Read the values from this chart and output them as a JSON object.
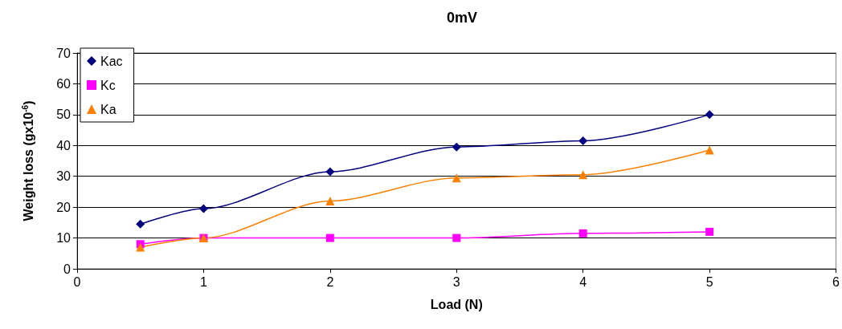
{
  "chart_data": {
    "type": "line",
    "title": "0mV",
    "xlabel": "Load (N)",
    "ylabel": "Weight loss (gx10$^{-6}$)",
    "x": [
      0.5,
      1,
      2,
      3,
      4,
      5
    ],
    "series": [
      {
        "name": "Kac",
        "color": "#000080",
        "marker": "diamond",
        "values": [
          14.5,
          19.5,
          31.5,
          39.5,
          41.5,
          50
        ]
      },
      {
        "name": "Kc",
        "color": "#ff00ff",
        "marker": "square",
        "values": [
          8,
          10,
          10,
          10,
          11.5,
          12
        ]
      },
      {
        "name": "Ka",
        "color": "#ff8000",
        "marker": "triangle",
        "values": [
          7,
          10,
          22,
          29.5,
          30.5,
          38.5
        ]
      }
    ],
    "xlim": [
      0,
      6
    ],
    "xticks": [
      0,
      1,
      2,
      3,
      4,
      5,
      6
    ],
    "ylim": [
      0,
      70
    ],
    "yticks": [
      0,
      10,
      20,
      30,
      40,
      50,
      60,
      70
    ],
    "grid": "y",
    "legend": "top left",
    "line_style": "solid"
  }
}
